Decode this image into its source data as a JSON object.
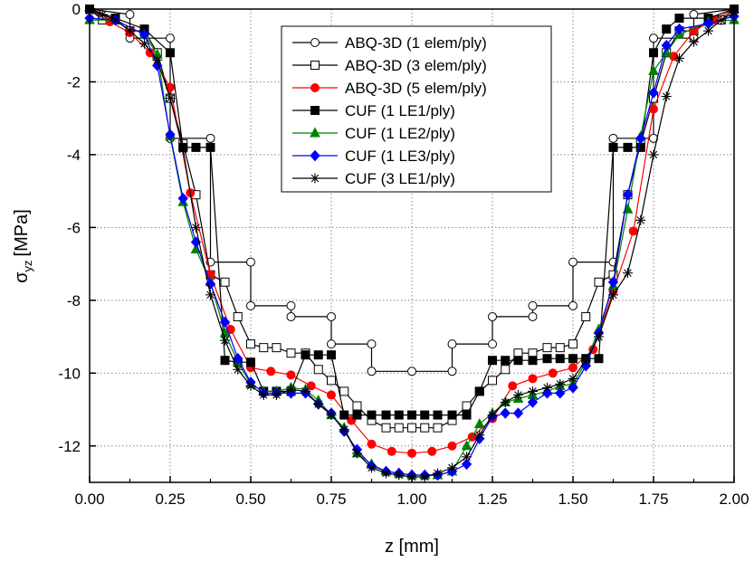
{
  "chart_data": {
    "type": "line",
    "xlabel": "z [mm]",
    "ylabel_main": "σ",
    "ylabel_sub": "yz",
    "ylabel_unit": "[MPa]",
    "xlim": [
      0,
      2
    ],
    "ylim": [
      -13,
      0
    ],
    "xticks": [
      "0.00",
      "0.25",
      "0.50",
      "0.75",
      "1.00",
      "1.25",
      "1.50",
      "1.75",
      "2.00"
    ],
    "yticks": [
      "0",
      "-2",
      "-4",
      "-6",
      "-8",
      "-10",
      "-12"
    ],
    "grid": true,
    "legend_position": "top-center",
    "series": [
      {
        "name": "ABQ-3D (1 elem/ply)",
        "color": "#000000",
        "marker": "open-circle",
        "x": [
          0,
          0.125,
          0.125,
          0.25,
          0.25,
          0.375,
          0.375,
          0.5,
          0.5,
          0.625,
          0.625,
          0.75,
          0.75,
          0.875,
          0.875,
          1.0,
          1.125,
          1.125,
          1.25,
          1.25,
          1.375,
          1.375,
          1.5,
          1.5,
          1.625,
          1.625,
          1.75,
          1.75,
          1.875,
          1.875,
          2.0
        ],
        "y": [
          0,
          -0.15,
          -0.8,
          -0.8,
          -3.55,
          -3.55,
          -6.95,
          -6.95,
          -8.15,
          -8.15,
          -8.45,
          -8.45,
          -9.2,
          -9.2,
          -9.95,
          -9.95,
          -9.95,
          -9.2,
          -9.2,
          -8.45,
          -8.45,
          -8.15,
          -8.15,
          -6.95,
          -6.95,
          -3.55,
          -3.55,
          -0.8,
          -0.8,
          -0.15,
          0
        ]
      },
      {
        "name": "ABQ-3D (3 elem/ply)",
        "color": "#000000",
        "marker": "open-square",
        "x": [
          0,
          0.04,
          0.08,
          0.125,
          0.17,
          0.21,
          0.25,
          0.29,
          0.33,
          0.375,
          0.42,
          0.46,
          0.5,
          0.54,
          0.58,
          0.625,
          0.67,
          0.71,
          0.75,
          0.79,
          0.83,
          0.875,
          0.92,
          0.96,
          1.0,
          1.04,
          1.08,
          1.125,
          1.17,
          1.21,
          1.25,
          1.29,
          1.33,
          1.375,
          1.42,
          1.46,
          1.5,
          1.54,
          1.58,
          1.625,
          1.67,
          1.71,
          1.75,
          1.79,
          1.83,
          1.875,
          1.92,
          1.96,
          2.0
        ],
        "y": [
          0,
          -0.3,
          -0.3,
          -0.6,
          -0.6,
          -1.2,
          -2.45,
          -3.7,
          -5.1,
          -7.3,
          -7.5,
          -8.45,
          -9.2,
          -9.3,
          -9.3,
          -9.45,
          -9.45,
          -9.9,
          -10.2,
          -10.5,
          -10.9,
          -11.3,
          -11.5,
          -11.5,
          -11.5,
          -11.5,
          -11.5,
          -11.3,
          -10.9,
          -10.5,
          -10.2,
          -9.9,
          -9.45,
          -9.45,
          -9.3,
          -9.3,
          -9.2,
          -8.45,
          -7.5,
          -7.3,
          -5.1,
          -3.7,
          -2.45,
          -1.2,
          -0.6,
          -0.6,
          -0.3,
          -0.3,
          0
        ]
      },
      {
        "name": "ABQ-3D (5 elem/ply)",
        "color": "#ff0000",
        "marker": "filled-circle",
        "x": [
          0,
          0.0625,
          0.125,
          0.1875,
          0.25,
          0.3125,
          0.375,
          0.4375,
          0.5,
          0.5625,
          0.625,
          0.6875,
          0.75,
          0.8125,
          0.875,
          0.9375,
          1.0,
          1.0625,
          1.125,
          1.1875,
          1.25,
          1.3125,
          1.375,
          1.4375,
          1.5,
          1.5625,
          1.625,
          1.6875,
          1.75,
          1.8125,
          1.875,
          1.9375,
          2.0
        ],
        "y": [
          0,
          -0.35,
          -0.65,
          -1.2,
          -2.15,
          -5.05,
          -7.3,
          -8.8,
          -9.85,
          -9.95,
          -10.05,
          -10.35,
          -10.6,
          -11.3,
          -11.95,
          -12.15,
          -12.2,
          -12.15,
          -12.0,
          -11.75,
          -11.25,
          -10.35,
          -10.15,
          -10.0,
          -9.85,
          -9.35,
          -7.75,
          -6.1,
          -2.75,
          -1.3,
          -0.6,
          -0.3,
          0
        ]
      },
      {
        "name": "CUF (1 LE1/ply)",
        "color": "#000000",
        "marker": "filled-square",
        "x": [
          0,
          0.08,
          0.17,
          0.25,
          0.29,
          0.33,
          0.375,
          0.42,
          0.46,
          0.5,
          0.54,
          0.58,
          0.625,
          0.67,
          0.71,
          0.75,
          0.79,
          0.83,
          0.875,
          0.92,
          0.96,
          1.0,
          1.04,
          1.08,
          1.125,
          1.17,
          1.21,
          1.25,
          1.29,
          1.33,
          1.375,
          1.42,
          1.46,
          1.5,
          1.54,
          1.58,
          1.625,
          1.67,
          1.71,
          1.75,
          1.79,
          1.83,
          1.92,
          2.0
        ],
        "y": [
          0,
          -0.25,
          -0.55,
          -1.2,
          -3.8,
          -3.8,
          -3.8,
          -9.65,
          -9.7,
          -9.7,
          -10.5,
          -10.5,
          -10.5,
          -9.5,
          -9.5,
          -9.5,
          -11.15,
          -11.15,
          -11.15,
          -11.15,
          -11.15,
          -11.15,
          -11.15,
          -11.15,
          -11.15,
          -11.15,
          -10.5,
          -9.65,
          -9.65,
          -9.65,
          -9.65,
          -9.6,
          -9.6,
          -9.6,
          -9.6,
          -9.6,
          -3.8,
          -3.8,
          -3.8,
          -1.2,
          -0.55,
          -0.25,
          -0.25,
          0
        ]
      },
      {
        "name": "CUF (1 LE2/ply)",
        "color": "#008000",
        "marker": "filled-triangle",
        "x": [
          0,
          0.08,
          0.17,
          0.21,
          0.25,
          0.29,
          0.33,
          0.375,
          0.42,
          0.46,
          0.5,
          0.54,
          0.58,
          0.625,
          0.67,
          0.71,
          0.75,
          0.79,
          0.83,
          0.875,
          0.92,
          0.96,
          1.0,
          1.04,
          1.08,
          1.125,
          1.17,
          1.21,
          1.25,
          1.29,
          1.33,
          1.375,
          1.42,
          1.46,
          1.5,
          1.54,
          1.58,
          1.625,
          1.67,
          1.71,
          1.75,
          1.79,
          1.83,
          1.92,
          2.0
        ],
        "y": [
          -0.3,
          -0.3,
          -0.7,
          -1.25,
          -3.5,
          -5.3,
          -6.6,
          -7.5,
          -8.9,
          -9.7,
          -10.3,
          -10.5,
          -10.5,
          -10.4,
          -10.45,
          -10.75,
          -11.15,
          -11.5,
          -12.2,
          -12.5,
          -12.7,
          -12.75,
          -12.8,
          -12.8,
          -12.8,
          -12.7,
          -12.0,
          -11.4,
          -11.1,
          -10.8,
          -10.7,
          -10.6,
          -10.5,
          -10.35,
          -10.3,
          -9.7,
          -8.8,
          -7.6,
          -5.5,
          -3.5,
          -1.7,
          -1.2,
          -0.7,
          -0.35,
          -0.3
        ]
      },
      {
        "name": "CUF (1 LE3/ply)",
        "color": "#0000ff",
        "marker": "filled-diamond",
        "x": [
          0,
          0.08,
          0.17,
          0.21,
          0.25,
          0.29,
          0.33,
          0.375,
          0.42,
          0.46,
          0.5,
          0.54,
          0.58,
          0.625,
          0.67,
          0.71,
          0.75,
          0.79,
          0.83,
          0.875,
          0.92,
          0.96,
          1.0,
          1.04,
          1.08,
          1.125,
          1.17,
          1.21,
          1.25,
          1.29,
          1.33,
          1.375,
          1.42,
          1.46,
          1.5,
          1.54,
          1.58,
          1.625,
          1.67,
          1.71,
          1.75,
          1.79,
          1.83,
          1.92,
          2.0
        ],
        "y": [
          -0.25,
          -0.3,
          -0.7,
          -1.55,
          -3.45,
          -5.2,
          -6.4,
          -7.55,
          -8.6,
          -9.6,
          -10.25,
          -10.55,
          -10.55,
          -10.55,
          -10.55,
          -10.85,
          -11.1,
          -11.6,
          -12.1,
          -12.55,
          -12.7,
          -12.75,
          -12.8,
          -12.8,
          -12.8,
          -12.7,
          -12.5,
          -11.8,
          -11.2,
          -11.1,
          -11.1,
          -10.8,
          -10.55,
          -10.55,
          -10.4,
          -9.8,
          -8.9,
          -7.5,
          -5.1,
          -3.55,
          -2.3,
          -1.0,
          -0.55,
          -0.4,
          -0.2
        ]
      },
      {
        "name": "CUF (3 LE1/ply)",
        "color": "#000000",
        "marker": "asterisk",
        "x": [
          0,
          0.04,
          0.08,
          0.125,
          0.17,
          0.21,
          0.25,
          0.29,
          0.33,
          0.375,
          0.42,
          0.46,
          0.5,
          0.54,
          0.58,
          0.625,
          0.67,
          0.71,
          0.75,
          0.79,
          0.83,
          0.875,
          0.92,
          0.96,
          1.0,
          1.04,
          1.08,
          1.125,
          1.17,
          1.21,
          1.25,
          1.29,
          1.33,
          1.375,
          1.42,
          1.46,
          1.5,
          1.54,
          1.58,
          1.625,
          1.67,
          1.71,
          1.75,
          1.79,
          1.83,
          1.875,
          1.92,
          1.96,
          2.0
        ],
        "y": [
          -0.05,
          -0.15,
          -0.3,
          -0.6,
          -0.95,
          -1.4,
          -2.45,
          -3.85,
          -6.0,
          -7.85,
          -9.1,
          -9.9,
          -10.35,
          -10.6,
          -10.6,
          -10.45,
          -10.5,
          -10.85,
          -11.15,
          -11.55,
          -12.2,
          -12.6,
          -12.75,
          -12.8,
          -12.85,
          -12.85,
          -12.75,
          -12.6,
          -12.3,
          -11.7,
          -11.15,
          -10.8,
          -10.6,
          -10.5,
          -10.4,
          -10.3,
          -10.15,
          -9.65,
          -9.0,
          -7.85,
          -7.25,
          -5.8,
          -4.0,
          -2.4,
          -1.35,
          -0.9,
          -0.6,
          -0.3,
          -0.1
        ]
      }
    ]
  }
}
